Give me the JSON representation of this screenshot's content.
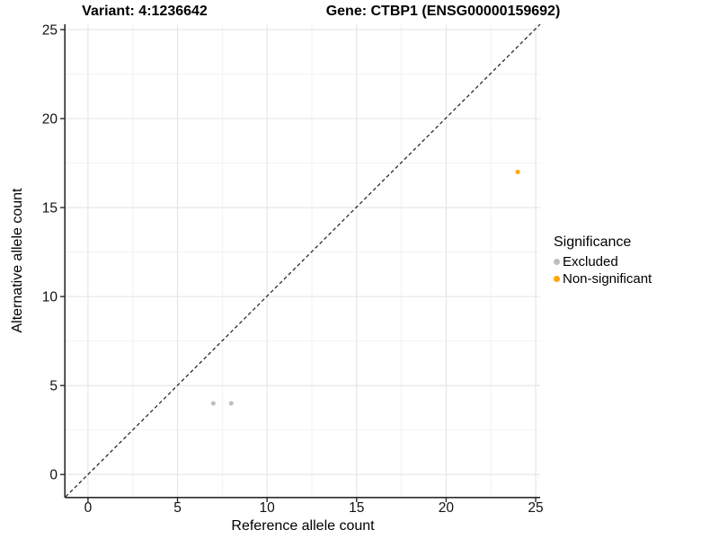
{
  "colors": {
    "background": "#FFFFFF",
    "grid_major": "#E4E4E4",
    "grid_minor": "#F1F1F1",
    "axis_line": "#2B2B2B",
    "tick_label": "#111111",
    "identity_line": "#1A1A1A",
    "excluded": "#BEBEBE",
    "non_significant": "#FFA500"
  },
  "legend": {
    "title": "Significance"
  },
  "chart_data": {
    "type": "scatter",
    "title_left": "Variant: 4:1236642",
    "title_right": "Gene: CTBP1 (ENSG00000159692)",
    "xlabel": "Reference allele count",
    "ylabel": "Alternative allele count",
    "xlim": [
      -1.25,
      25.25
    ],
    "ylim": [
      -1.25,
      25.3
    ],
    "x_ticks": [
      0,
      5,
      10,
      15,
      20,
      25
    ],
    "y_ticks": [
      0,
      5,
      10,
      15,
      20,
      25
    ],
    "x_minor_ticks": [
      2.5,
      7.5,
      12.5,
      17.5,
      22.5
    ],
    "y_minor_ticks": [
      2.5,
      7.5,
      12.5,
      17.5,
      22.5
    ],
    "grid": "major+minor",
    "axis_lines": "left+bottom",
    "identity_line": {
      "shown": true,
      "style": "dashed",
      "equation": "y = x"
    },
    "legend_title": "Significance",
    "legend_position": "right",
    "point_radius": 2.5,
    "series": [
      {
        "name": "Excluded",
        "color": "#BEBEBE",
        "points": [
          [
            7,
            4
          ],
          [
            8,
            4
          ]
        ]
      },
      {
        "name": "Non-significant",
        "color": "#FFA500",
        "points": [
          [
            24,
            17
          ]
        ]
      }
    ]
  }
}
